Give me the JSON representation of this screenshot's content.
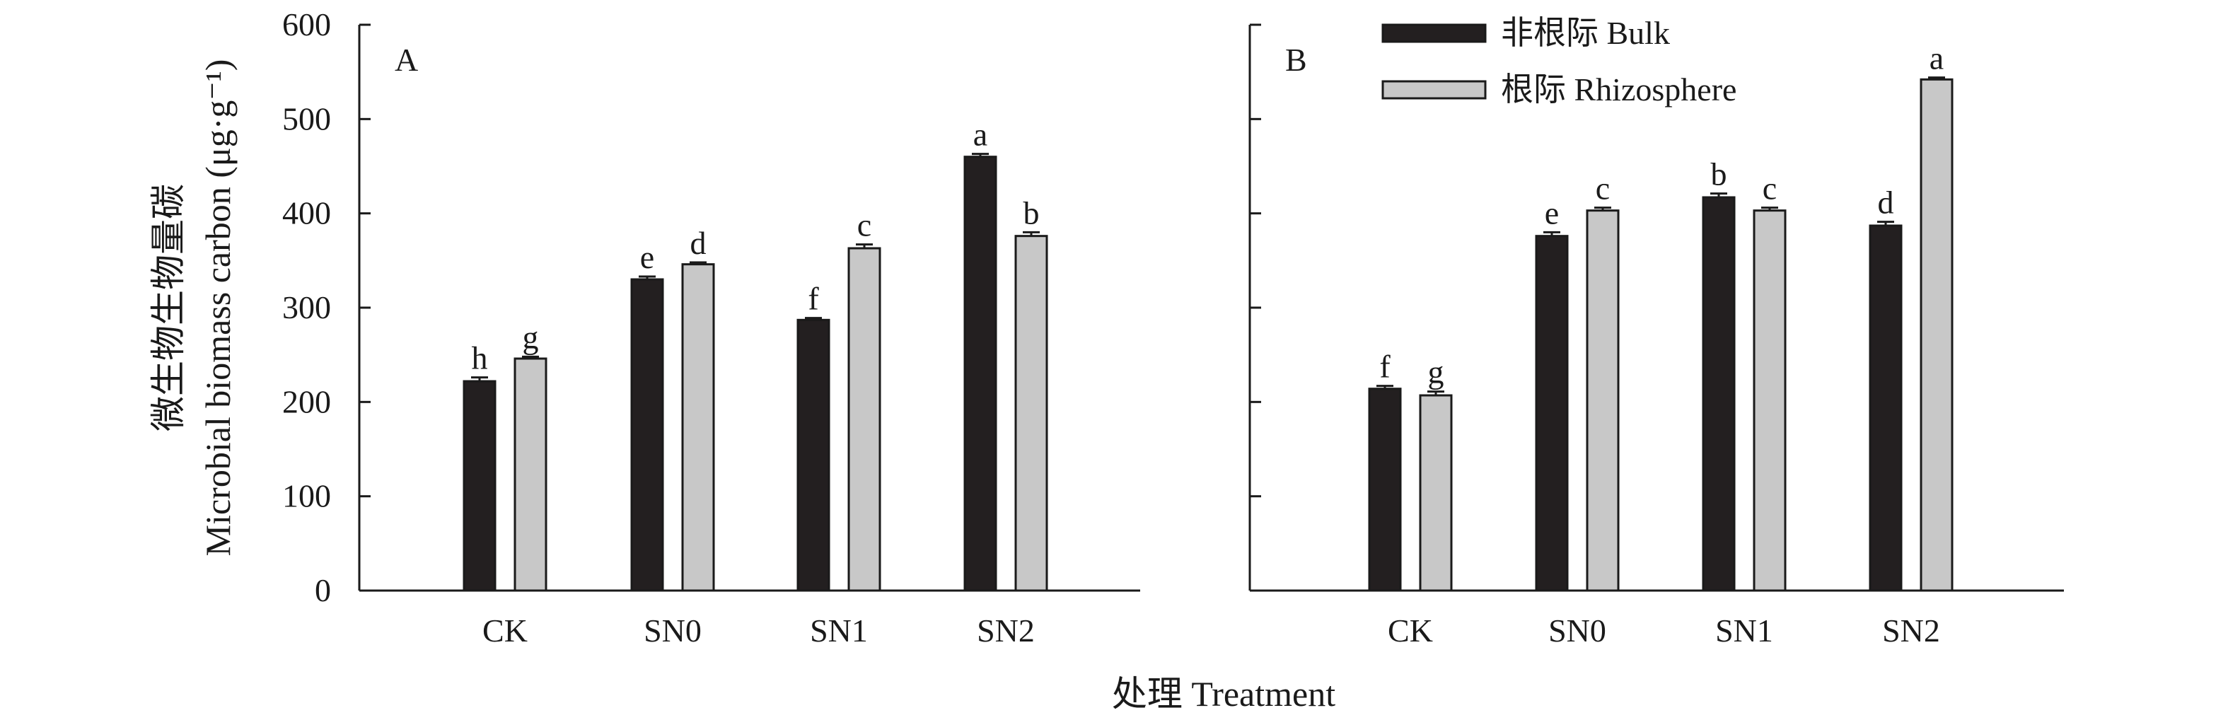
{
  "chart_data": {
    "type": "bar",
    "categories": [
      "CK",
      "SN0",
      "SN1",
      "SN2"
    ],
    "ylabel_line1": "微生物生物量碳",
    "ylabel_line2": "Microbial biomass carbon (μg·g⁻¹)",
    "xlabel": "处理 Treatment",
    "ylim": [
      0,
      600
    ],
    "yticks": [
      0,
      100,
      200,
      300,
      400,
      500,
      600
    ],
    "legend": {
      "placement": "top-center of panel B",
      "entries": [
        {
          "label": "非根际 Bulk",
          "color": "#231f20"
        },
        {
          "label": "根际 Rhizosphere",
          "color": "#c8c8c8"
        }
      ]
    },
    "panels": [
      {
        "label": "A",
        "series": [
          {
            "name": "非根际 Bulk",
            "color": "#231f20",
            "values": [
              222,
              330,
              287,
              460
            ],
            "errors": [
              4,
              3,
              2,
              3
            ],
            "letters": [
              "h",
              "e",
              "f",
              "a"
            ]
          },
          {
            "name": "根际 Rhizosphere",
            "color": "#c8c8c8",
            "values": [
              246,
              346,
              363,
              376
            ],
            "errors": [
              2,
              2,
              4,
              4
            ],
            "letters": [
              "g",
              "d",
              "c",
              "b"
            ]
          }
        ]
      },
      {
        "label": "B",
        "series": [
          {
            "name": "非根际 Bulk",
            "color": "#231f20",
            "values": [
              214,
              376,
              417,
              387
            ],
            "errors": [
              3,
              4,
              4,
              4
            ],
            "letters": [
              "f",
              "e",
              "b",
              "d"
            ]
          },
          {
            "name": "根际 Rhizosphere",
            "color": "#c8c8c8",
            "values": [
              207,
              403,
              403,
              542
            ],
            "errors": [
              4,
              3,
              3,
              2
            ],
            "letters": [
              "g",
              "c",
              "c",
              "a"
            ]
          }
        ]
      }
    ]
  }
}
